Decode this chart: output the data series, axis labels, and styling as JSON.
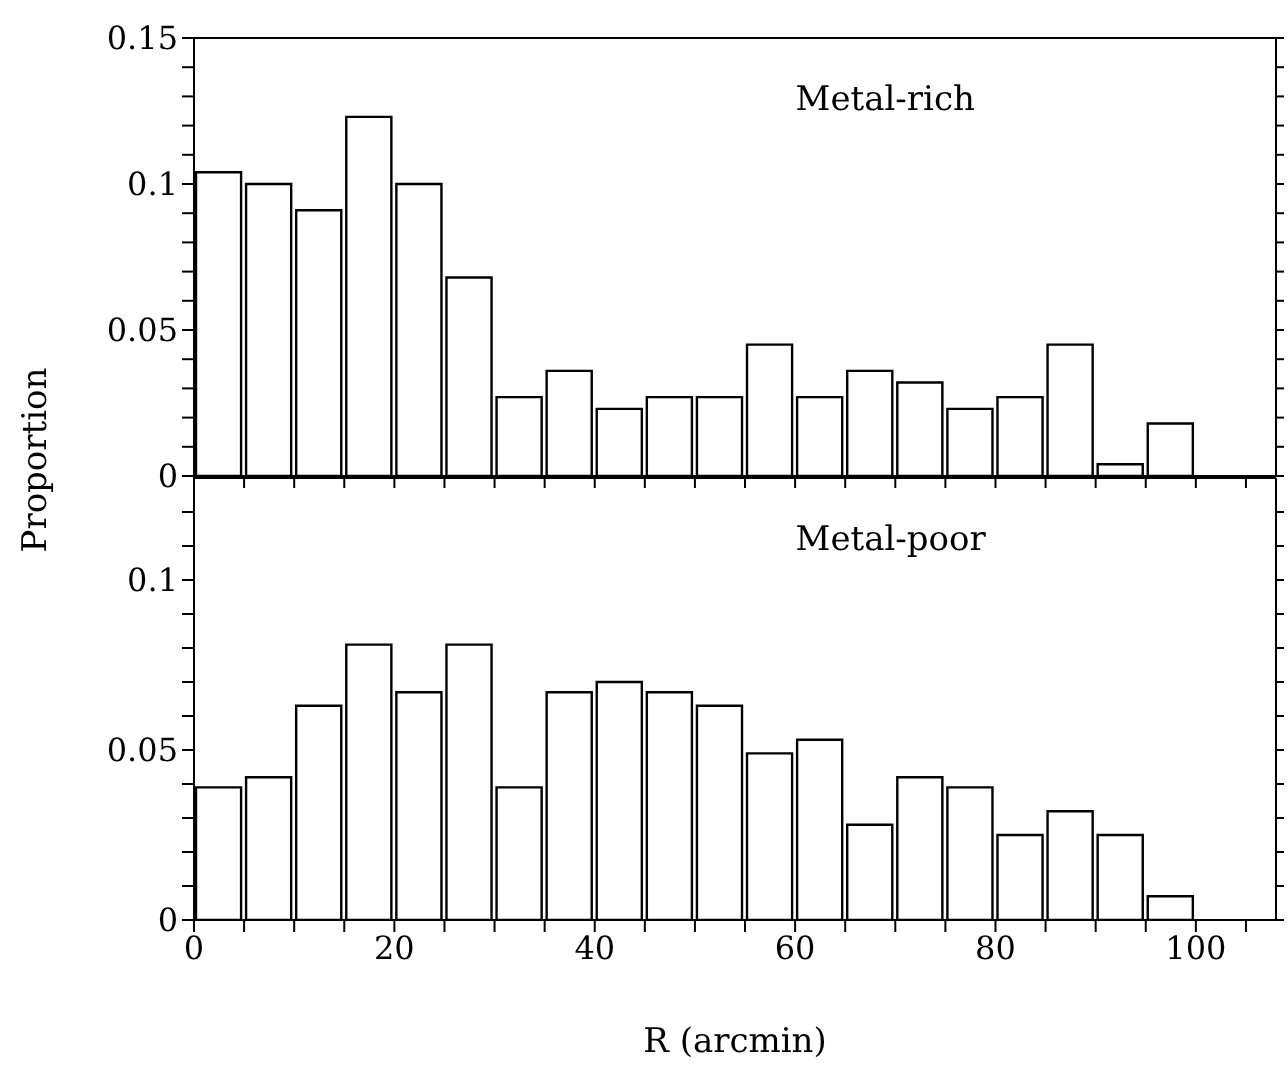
{
  "chart_data": [
    {
      "type": "histogram",
      "ylabel": "Proportion",
      "annotations": [
        "Metal-rich"
      ],
      "bins": [
        0,
        5,
        10,
        15,
        20,
        25,
        30,
        35,
        40,
        45,
        50,
        55,
        60,
        65,
        70,
        75,
        80,
        85,
        90,
        95,
        100
      ],
      "values": [
        0.104,
        0.1,
        0.091,
        0.123,
        0.1,
        0.068,
        0.027,
        0.036,
        0.023,
        0.027,
        0.027,
        0.045,
        0.027,
        0.036,
        0.032,
        0.023,
        0.027,
        0.045,
        0.004,
        0.018
      ],
      "color": "#ffffff",
      "xlim": [
        0,
        108
      ],
      "xticks": [
        {
          "value": 0,
          "label": null
        },
        {
          "value": 5,
          "label": null
        },
        {
          "value": 10,
          "label": null
        },
        {
          "value": 15,
          "label": null
        },
        {
          "value": 20,
          "label": null
        },
        {
          "value": 25,
          "label": null
        },
        {
          "value": 30,
          "label": null
        },
        {
          "value": 35,
          "label": null
        },
        {
          "value": 40,
          "label": null
        },
        {
          "value": 45,
          "label": null
        },
        {
          "value": 50,
          "label": null
        },
        {
          "value": 55,
          "label": null
        },
        {
          "value": 60,
          "label": null
        },
        {
          "value": 65,
          "label": null
        },
        {
          "value": 70,
          "label": null
        },
        {
          "value": 75,
          "label": null
        },
        {
          "value": 80,
          "label": null
        },
        {
          "value": 85,
          "label": null
        },
        {
          "value": 90,
          "label": null
        },
        {
          "value": 95,
          "label": null
        },
        {
          "value": 100,
          "label": null
        },
        {
          "value": 105,
          "label": null
        }
      ],
      "ylim": [
        0,
        0.15
      ],
      "yticks": [
        0,
        {
          "value": 0.01,
          "label": null
        },
        {
          "value": 0.02,
          "label": null
        },
        {
          "value": 0.03,
          "label": null
        },
        {
          "value": 0.04,
          "label": null
        },
        0.05,
        {
          "value": 0.06,
          "label": null
        },
        {
          "value": 0.07,
          "label": null
        },
        {
          "value": 0.08,
          "label": null
        },
        {
          "value": 0.09,
          "label": null
        },
        0.1,
        {
          "value": 0.11,
          "label": null
        },
        {
          "value": 0.12,
          "label": null
        },
        {
          "value": 0.13,
          "label": null
        },
        {
          "value": 0.14,
          "label": null
        },
        0.15
      ],
      "tick_labels": "y",
      "grid": false,
      "legend": false
    },
    {
      "type": "histogram",
      "xlabel": "R (arcmin)",
      "annotations": [
        "Metal-poor"
      ],
      "bins": [
        0,
        5,
        10,
        15,
        20,
        25,
        30,
        35,
        40,
        45,
        50,
        55,
        60,
        65,
        70,
        75,
        80,
        85,
        90,
        95,
        100
      ],
      "values": [
        0.039,
        0.042,
        0.063,
        0.081,
        0.067,
        0.081,
        0.039,
        0.067,
        0.07,
        0.067,
        0.063,
        0.049,
        0.053,
        0.028,
        0.042,
        0.039,
        0.025,
        0.032,
        0.025,
        0.007
      ],
      "color": "#ffffff",
      "xlim": [
        0,
        108
      ],
      "xticks": [
        0,
        {
          "value": 5,
          "label": null
        },
        {
          "value": 10,
          "label": null
        },
        {
          "value": 15,
          "label": null
        },
        20,
        {
          "value": 25,
          "label": null
        },
        {
          "value": 30,
          "label": null
        },
        {
          "value": 35,
          "label": null
        },
        40,
        {
          "value": 45,
          "label": null
        },
        {
          "value": 50,
          "label": null
        },
        {
          "value": 55,
          "label": null
        },
        60,
        {
          "value": 65,
          "label": null
        },
        {
          "value": 70,
          "label": null
        },
        {
          "value": 75,
          "label": null
        },
        80,
        {
          "value": 85,
          "label": null
        },
        {
          "value": 90,
          "label": null
        },
        {
          "value": 95,
          "label": null
        },
        100,
        {
          "value": 105,
          "label": null
        }
      ],
      "ylim": [
        0,
        0.13
      ],
      "yticks": [
        0,
        {
          "value": 0.01,
          "label": null
        },
        {
          "value": 0.02,
          "label": null
        },
        {
          "value": 0.03,
          "label": null
        },
        {
          "value": 0.04,
          "label": null
        },
        0.05,
        {
          "value": 0.06,
          "label": null
        },
        {
          "value": 0.07,
          "label": null
        },
        {
          "value": 0.08,
          "label": null
        },
        {
          "value": 0.09,
          "label": null
        },
        0.1,
        {
          "value": 0.11,
          "label": null
        },
        {
          "value": 0.12,
          "label": null
        }
      ],
      "grid": false,
      "legend": false
    }
  ]
}
